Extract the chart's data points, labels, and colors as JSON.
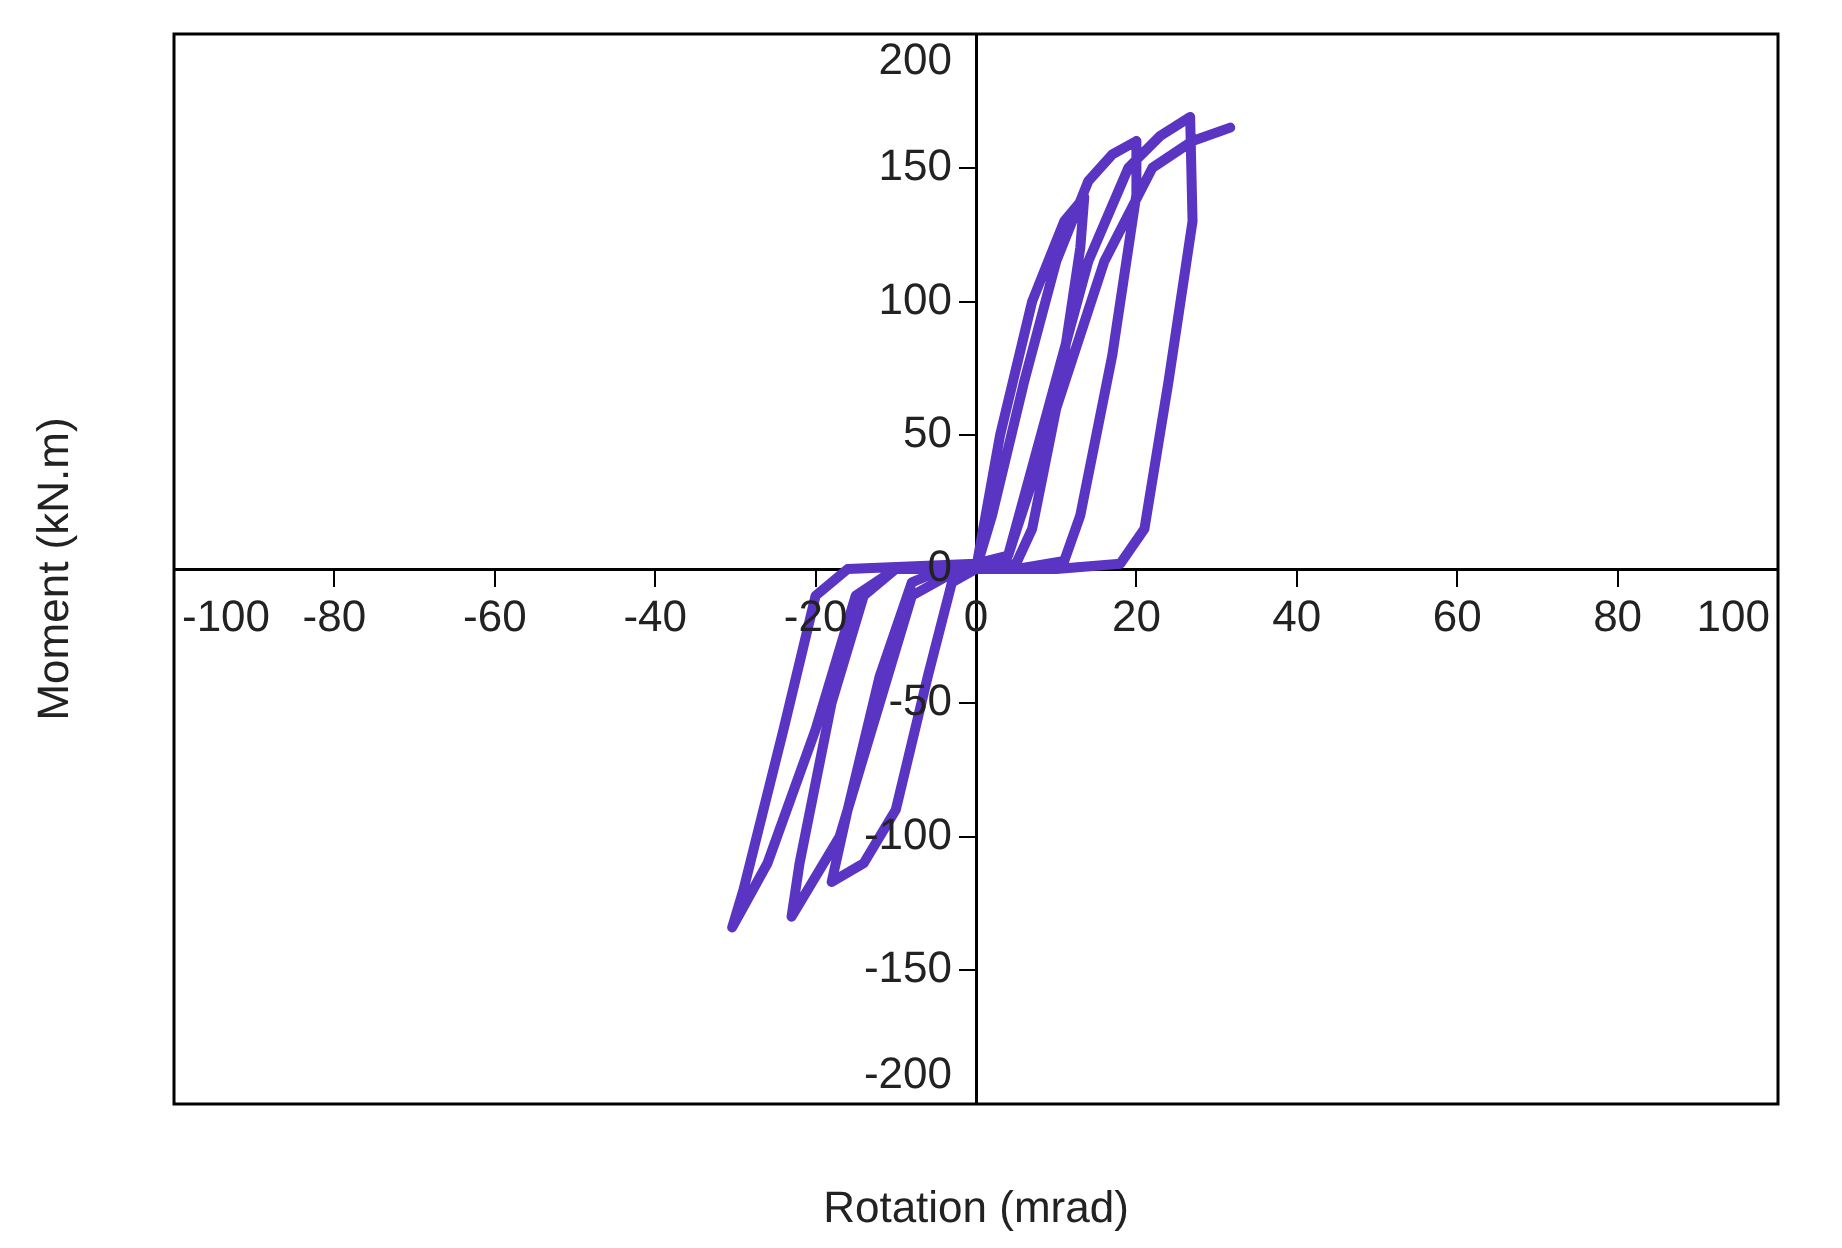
{
  "chart_data": {
    "type": "line",
    "xlabel": "Rotation (mrad)",
    "ylabel": "Moment (kN.m)",
    "xlim": [
      -100,
      100
    ],
    "xticks": [
      -100,
      -80,
      -60,
      -40,
      -20,
      0,
      20,
      40,
      60,
      80,
      100
    ],
    "ylim": [
      -200,
      200
    ],
    "yticks": [
      -200,
      -150,
      -100,
      -50,
      0,
      50,
      100,
      150,
      200
    ],
    "grid": false,
    "legend": false,
    "marker": "none",
    "line_style": "solid",
    "series": [
      {
        "color": "#5a34c2",
        "x": [
          0,
          3,
          7,
          11,
          13.5,
          13,
          10,
          7,
          5,
          0,
          -3,
          -6,
          -10,
          -14,
          -18,
          -16,
          -12,
          -8,
          -4,
          0,
          2,
          6,
          10,
          14,
          17,
          20,
          20,
          17,
          13,
          11,
          5,
          -2,
          -8,
          -12,
          -17,
          -23,
          -22,
          -18,
          -14,
          -10,
          0,
          4,
          9,
          14,
          19,
          23,
          26.7,
          27,
          24,
          21,
          18,
          10,
          0,
          -10,
          -15,
          -20,
          -26,
          -30.4,
          -29,
          -24,
          -20,
          -16,
          0,
          4,
          10,
          16,
          22,
          27,
          31.7
        ],
        "values": [
          0,
          50,
          100,
          130,
          139,
          120,
          60,
          15,
          2,
          0,
          -5,
          -40,
          -90,
          -110,
          -117,
          -90,
          -40,
          -5,
          0,
          0,
          20,
          70,
          115,
          145,
          155,
          160,
          140,
          80,
          20,
          3,
          0,
          0,
          -10,
          -50,
          -100,
          -130,
          -110,
          -50,
          -10,
          0,
          2,
          5,
          60,
          115,
          150,
          162,
          169,
          130,
          70,
          15,
          2,
          0,
          0,
          0,
          -10,
          -60,
          -110,
          -134,
          -120,
          -60,
          -10,
          0,
          2,
          5,
          60,
          115,
          150,
          160,
          165
        ]
      }
    ]
  }
}
